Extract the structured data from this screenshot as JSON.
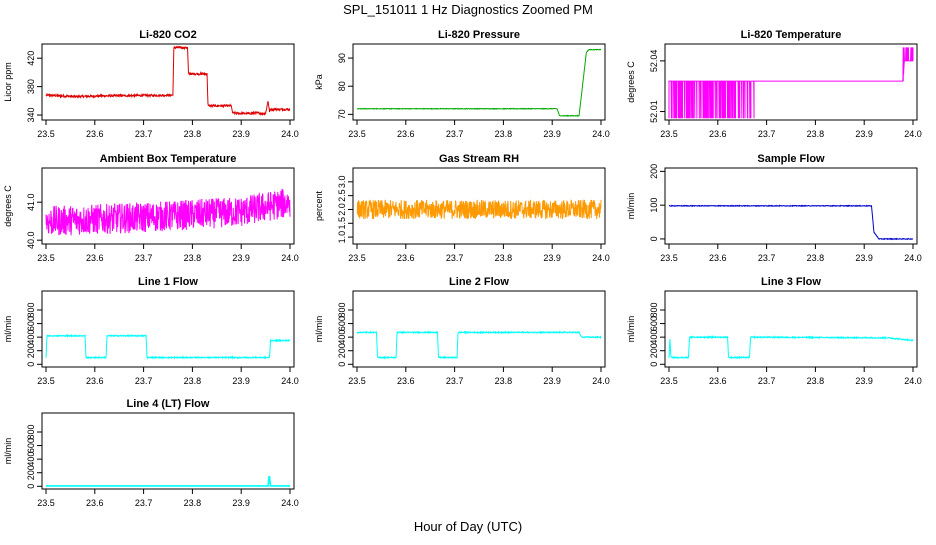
{
  "figure": {
    "title": "SPL_151011  1 Hz Diagnostics Zoomed PM",
    "xlabel": "Hour of Day (UTC)"
  },
  "chart_data": [
    {
      "type": "line",
      "title": "Li-820 CO2",
      "ylabel": "Licor ppm",
      "color": "#dd0000",
      "xlim": [
        23.5,
        24.0
      ],
      "ylim": [
        333,
        440
      ],
      "xticks": [
        "23.5",
        "23.6",
        "23.7",
        "23.8",
        "23.9",
        "24.0"
      ],
      "yticks": [
        "340",
        "380",
        "420"
      ],
      "noise": 1.5,
      "x": [
        23.5,
        23.56,
        23.62,
        23.76,
        23.762,
        23.79,
        23.792,
        23.83,
        23.832,
        23.88,
        23.882,
        23.91,
        23.93,
        23.95,
        23.955,
        23.958,
        23.96,
        23.97,
        24.0
      ],
      "y": [
        368,
        366,
        367,
        368,
        435,
        435,
        398,
        398,
        353,
        353,
        343,
        342,
        343,
        342,
        360,
        345,
        348,
        348,
        348
      ]
    },
    {
      "type": "line",
      "title": "Li-820 Pressure",
      "ylabel": "kPa",
      "color": "#00aa00",
      "xlim": [
        23.5,
        24.0
      ],
      "ylim": [
        68,
        95
      ],
      "xticks": [
        "23.5",
        "23.6",
        "23.7",
        "23.8",
        "23.9",
        "24.0"
      ],
      "yticks": [
        "70",
        "80",
        "90"
      ],
      "noise": 0.1,
      "x": [
        23.5,
        23.91,
        23.915,
        23.955,
        23.97,
        23.975,
        24.0
      ],
      "y": [
        72,
        72,
        69.5,
        69.5,
        92,
        93,
        93
      ]
    },
    {
      "type": "line",
      "title": "Li-820 Temperature",
      "ylabel": "degrees C",
      "color": "#ff00ff",
      "xlim": [
        23.5,
        24.0
      ],
      "ylim": [
        52.005,
        52.05
      ],
      "xticks": [
        "23.5",
        "23.6",
        "23.7",
        "23.8",
        "23.9",
        "24.0"
      ],
      "yticks": [
        "52.01",
        "52.04"
      ],
      "noise": 0,
      "x": [
        23.5,
        23.98,
        23.982,
        24.0
      ],
      "y": [
        52.028,
        52.028,
        52.04,
        52.04
      ],
      "spikes": {
        "ranges": [
          [
            23.5,
            23.675,
            0.0045
          ],
          [
            23.918,
            23.92,
            0.001
          ],
          [
            23.98,
            24.0,
            0.0015
          ]
        ],
        "low": 52.006,
        "high": 52.048
      }
    },
    {
      "type": "line",
      "title": "Ambient Box Temperature",
      "ylabel": "degrees C",
      "color": "#ff00ff",
      "xlim": [
        23.5,
        24.0
      ],
      "ylim": [
        39.9,
        41.9
      ],
      "xticks": [
        "23.5",
        "23.6",
        "23.7",
        "23.8",
        "23.9",
        "24.0"
      ],
      "yticks": [
        "40.0",
        "41.0"
      ],
      "noise": 0.4,
      "x": [
        23.5,
        23.7,
        23.9,
        24.0
      ],
      "y": [
        40.5,
        40.6,
        40.75,
        41.0
      ]
    },
    {
      "type": "line",
      "title": "Gas Stream RH",
      "ylabel": "percent",
      "color": "#ff9900",
      "xlim": [
        23.5,
        24.0
      ],
      "ylim": [
        0.75,
        3.5
      ],
      "xticks": [
        "23.5",
        "23.6",
        "23.7",
        "23.8",
        "23.9",
        "24.0"
      ],
      "yticks": [
        "1.0",
        "1.5",
        "2.0",
        "2.5",
        "3.0"
      ],
      "noise": 0.35,
      "x": [
        23.5,
        24.0
      ],
      "y": [
        2.0,
        2.0
      ]
    },
    {
      "type": "line",
      "title": "Sample Flow",
      "ylabel": "ml/min",
      "color": "#0000cc",
      "xlim": [
        23.5,
        24.0
      ],
      "ylim": [
        -15,
        210
      ],
      "xticks": [
        "23.5",
        "23.6",
        "23.7",
        "23.8",
        "23.9",
        "24.0"
      ],
      "yticks": [
        "0",
        "100",
        "200"
      ],
      "noise": 1,
      "x": [
        23.5,
        23.915,
        23.92,
        23.93,
        24.0
      ],
      "y": [
        98,
        98,
        20,
        0,
        0
      ]
    },
    {
      "type": "line",
      "title": "Line 1 Flow",
      "ylabel": "ml/min",
      "color": "#00ffff",
      "xlim": [
        23.5,
        24.0
      ],
      "ylim": [
        -40,
        1080
      ],
      "xticks": [
        "23.5",
        "23.6",
        "23.7",
        "23.8",
        "23.9",
        "24.0"
      ],
      "yticks": [
        "0",
        "200",
        "400",
        "600",
        "800"
      ],
      "noise": 8,
      "x": [
        23.5,
        23.502,
        23.58,
        23.582,
        23.623,
        23.625,
        23.705,
        23.707,
        23.958,
        23.96,
        24.0
      ],
      "y": [
        100,
        420,
        420,
        100,
        100,
        420,
        420,
        100,
        100,
        350,
        350
      ]
    },
    {
      "type": "line",
      "title": "Line 2 Flow",
      "ylabel": "ml/min",
      "color": "#00ffff",
      "xlim": [
        23.5,
        24.0
      ],
      "ylim": [
        -40,
        1080
      ],
      "xticks": [
        "23.5",
        "23.6",
        "23.7",
        "23.8",
        "23.9",
        "24.0"
      ],
      "yticks": [
        "0",
        "200",
        "400",
        "600",
        "800"
      ],
      "noise": 8,
      "x": [
        23.5,
        23.54,
        23.542,
        23.58,
        23.582,
        23.665,
        23.667,
        23.705,
        23.707,
        23.955,
        23.96,
        24.0
      ],
      "y": [
        470,
        470,
        100,
        100,
        470,
        470,
        100,
        100,
        470,
        470,
        400,
        400
      ]
    },
    {
      "type": "line",
      "title": "Line 3 Flow",
      "ylabel": "ml/min",
      "color": "#00ffff",
      "xlim": [
        23.5,
        24.0
      ],
      "ylim": [
        -40,
        1080
      ],
      "xticks": [
        "23.5",
        "23.6",
        "23.7",
        "23.8",
        "23.9",
        "24.0"
      ],
      "yticks": [
        "0",
        "200",
        "400",
        "600",
        "800"
      ],
      "noise": 8,
      "x": [
        23.5,
        23.502,
        23.504,
        23.54,
        23.542,
        23.62,
        23.622,
        23.665,
        23.667,
        23.95,
        24.0
      ],
      "y": [
        100,
        380,
        100,
        100,
        400,
        400,
        100,
        100,
        400,
        390,
        350
      ]
    },
    {
      "type": "line",
      "title": "Line 4 (LT) Flow",
      "ylabel": "ml/min",
      "color": "#00ffff",
      "xlim": [
        23.5,
        24.0
      ],
      "ylim": [
        -40,
        1080
      ],
      "xticks": [
        "23.5",
        "23.6",
        "23.7",
        "23.8",
        "23.9",
        "24.0"
      ],
      "yticks": [
        "0",
        "200",
        "400",
        "600",
        "800"
      ],
      "noise": 0,
      "x": [
        23.5,
        23.955,
        23.957,
        23.958,
        23.96,
        24.0
      ],
      "y": [
        5,
        5,
        140,
        140,
        5,
        5
      ]
    }
  ]
}
